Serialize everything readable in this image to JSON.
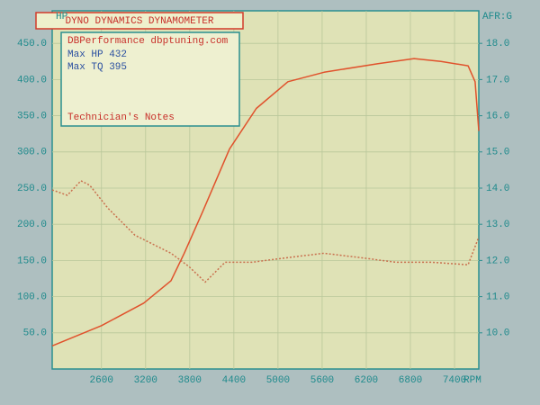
{
  "chart_data": {
    "type": "line",
    "title": "DYNO DYNAMICS DYNAMOMETER",
    "annotations": [
      "DBPerformance dbptuning.com",
      "Max HP 432",
      "Max TQ 395",
      "Technician's Notes"
    ],
    "y_label": "HP",
    "y2_label": "AFR:G",
    "x_label": "RPM",
    "xlim": [
      1930,
      7730
    ],
    "xticks": [
      2600,
      3200,
      3800,
      4400,
      5000,
      5600,
      6200,
      6800,
      7400
    ],
    "ylim": [
      0,
      495
    ],
    "yticks": [
      {
        "value": 50,
        "label": "50.0"
      },
      {
        "value": 100,
        "label": "100.0"
      },
      {
        "value": 150,
        "label": "150.0"
      },
      {
        "value": 200,
        "label": "200.0"
      },
      {
        "value": 250,
        "label": "250.0"
      },
      {
        "value": 300,
        "label": "300.0"
      },
      {
        "value": 350,
        "label": "350.0"
      },
      {
        "value": 400,
        "label": "400.0"
      },
      {
        "value": 450,
        "label": "450.0"
      }
    ],
    "y2lim": [
      9,
      18.9
    ],
    "y2ticks": [
      {
        "value": 10,
        "label": "10.0"
      },
      {
        "value": 11,
        "label": "11.0"
      },
      {
        "value": 12,
        "label": "12.0"
      },
      {
        "value": 13,
        "label": "13.0"
      },
      {
        "value": 14,
        "label": "14.0"
      },
      {
        "value": 15,
        "label": "15.0"
      },
      {
        "value": 16,
        "label": "16.0"
      },
      {
        "value": 17,
        "label": "17.0"
      },
      {
        "value": 18,
        "label": "18.0"
      }
    ],
    "grid": true,
    "series": [
      {
        "color": "#e0522c",
        "axis": "y",
        "x": [
          1930,
          2600,
          3175,
          3545,
          3725,
          3970,
          4340,
          4705,
          5135,
          5625,
          6360,
          6850,
          7215,
          7585,
          7680,
          7730
        ],
        "values": [
          32,
          60,
          91,
          122,
          160,
          216,
          304,
          360,
          397,
          410,
          422,
          429,
          425,
          419,
          397,
          329
        ]
      },
      {
        "color": "#c9704e",
        "axis": "y2",
        "dashed": true,
        "x": [
          1930,
          2135,
          2320,
          2440,
          2685,
          3055,
          3545,
          3790,
          4010,
          4280,
          4645,
          5135,
          5625,
          6115,
          6605,
          7095,
          7585,
          7730
        ],
        "values": [
          13.95,
          13.8,
          14.2,
          14.08,
          13.45,
          12.7,
          12.2,
          11.83,
          11.4,
          11.95,
          11.95,
          12.08,
          12.2,
          12.08,
          11.95,
          11.95,
          11.88,
          12.65
        ]
      }
    ]
  }
}
